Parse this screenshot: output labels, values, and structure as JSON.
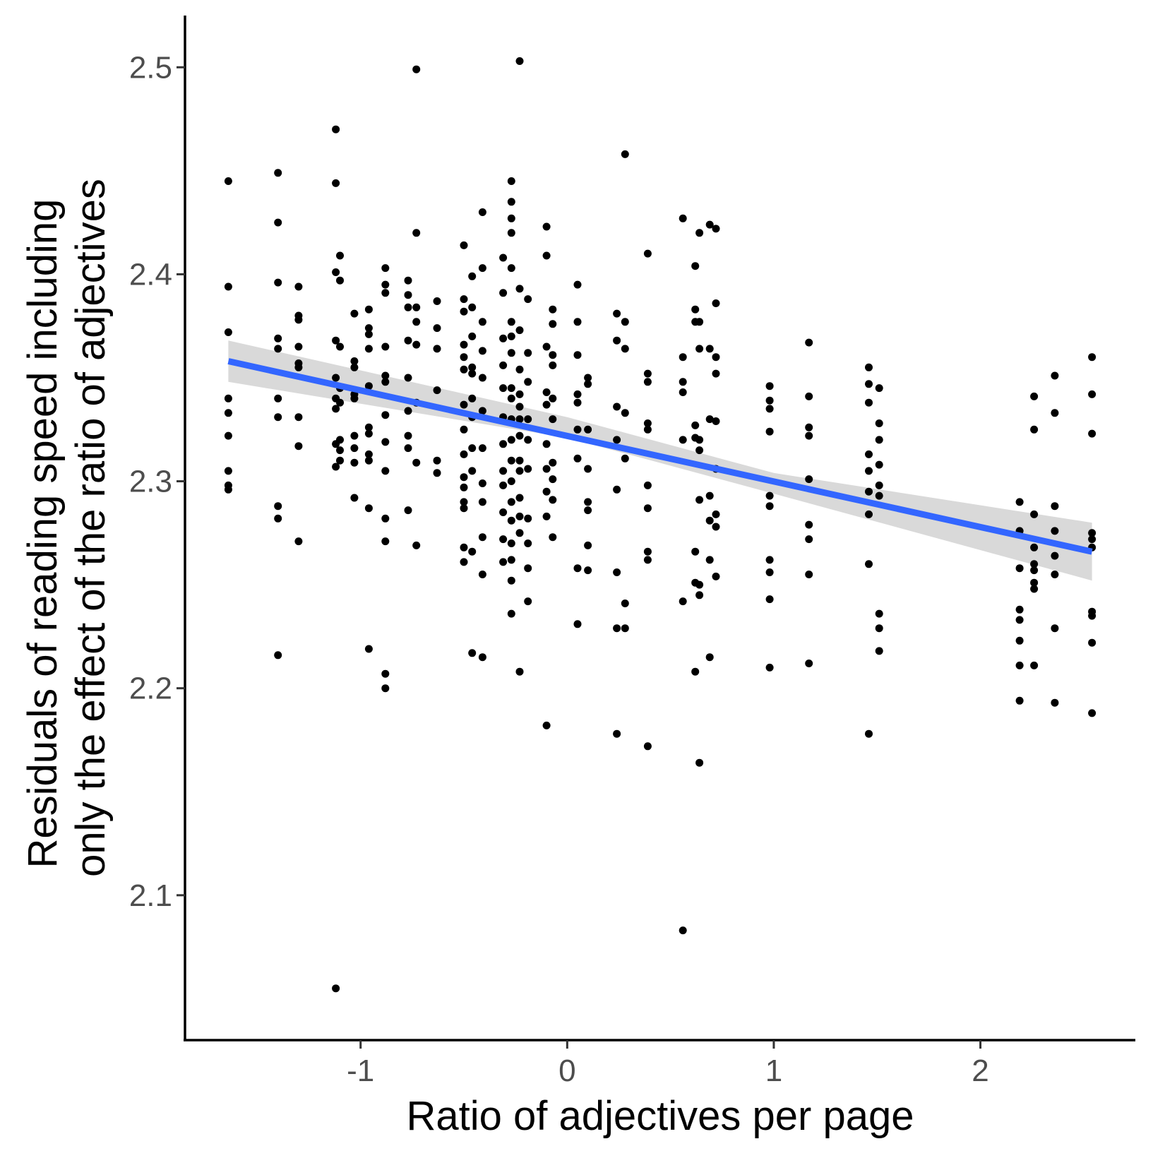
{
  "chart_data": {
    "type": "scatter",
    "xlabel": "Ratio of adjectives per page",
    "ylabel_lines": [
      "Residuals of reading speed including",
      "only the effect of the ratio of adjectives"
    ],
    "xlim": [
      -1.85,
      2.75
    ],
    "ylim": [
      2.03,
      2.525
    ],
    "x_ticks": [
      -1,
      0,
      1,
      2
    ],
    "x_tick_labels": [
      "-1",
      "0",
      "1",
      "2"
    ],
    "y_ticks": [
      2.1,
      2.2,
      2.3,
      2.4,
      2.5
    ],
    "y_tick_labels": [
      "2.1",
      "2.2",
      "2.3",
      "2.4",
      "2.5"
    ],
    "grid": false,
    "legend": "none",
    "colors": {
      "points": "#000000",
      "fit_line": "#3366ff",
      "confidence_band": "#cccccc",
      "axis": "#000000",
      "tick_text": "#4d4d4d"
    },
    "fit_line": {
      "x": [
        -1.64,
        2.54
      ],
      "y": [
        2.358,
        2.266
      ]
    },
    "confidence_band": {
      "x": [
        -1.64,
        0.0,
        1.0,
        2.54
      ],
      "lower": [
        2.348,
        2.321,
        2.294,
        2.252
      ],
      "upper": [
        2.368,
        2.331,
        2.304,
        2.28
      ]
    },
    "points": [
      [
        -1.64,
        2.445
      ],
      [
        -1.64,
        2.394
      ],
      [
        -1.64,
        2.372
      ],
      [
        -1.64,
        2.34
      ],
      [
        -1.64,
        2.333
      ],
      [
        -1.64,
        2.322
      ],
      [
        -1.64,
        2.305
      ],
      [
        -1.64,
        2.298
      ],
      [
        -1.64,
        2.296
      ],
      [
        -1.4,
        2.449
      ],
      [
        -1.4,
        2.425
      ],
      [
        -1.4,
        2.396
      ],
      [
        -1.4,
        2.369
      ],
      [
        -1.4,
        2.364
      ],
      [
        -1.4,
        2.34
      ],
      [
        -1.4,
        2.331
      ],
      [
        -1.4,
        2.288
      ],
      [
        -1.4,
        2.282
      ],
      [
        -1.4,
        2.216
      ],
      [
        -1.3,
        2.394
      ],
      [
        -1.3,
        2.38
      ],
      [
        -1.3,
        2.378
      ],
      [
        -1.3,
        2.365
      ],
      [
        -1.3,
        2.357
      ],
      [
        -1.3,
        2.355
      ],
      [
        -1.3,
        2.331
      ],
      [
        -1.3,
        2.317
      ],
      [
        -1.3,
        2.271
      ],
      [
        -1.12,
        2.47
      ],
      [
        -1.12,
        2.444
      ],
      [
        -1.12,
        2.401
      ],
      [
        -1.12,
        2.368
      ],
      [
        -1.12,
        2.35
      ],
      [
        -1.12,
        2.34
      ],
      [
        -1.12,
        2.335
      ],
      [
        -1.12,
        2.318
      ],
      [
        -1.12,
        2.307
      ],
      [
        -1.12,
        2.055
      ],
      [
        -1.1,
        2.409
      ],
      [
        -1.1,
        2.397
      ],
      [
        -1.1,
        2.365
      ],
      [
        -1.1,
        2.345
      ],
      [
        -1.1,
        2.338
      ],
      [
        -1.1,
        2.32
      ],
      [
        -1.1,
        2.315
      ],
      [
        -1.1,
        2.31
      ],
      [
        -1.03,
        2.381
      ],
      [
        -1.03,
        2.358
      ],
      [
        -1.03,
        2.355
      ],
      [
        -1.03,
        2.342
      ],
      [
        -1.03,
        2.34
      ],
      [
        -1.03,
        2.322
      ],
      [
        -1.03,
        2.316
      ],
      [
        -1.03,
        2.309
      ],
      [
        -1.03,
        2.292
      ],
      [
        -0.96,
        2.383
      ],
      [
        -0.96,
        2.374
      ],
      [
        -0.96,
        2.371
      ],
      [
        -0.96,
        2.364
      ],
      [
        -0.96,
        2.346
      ],
      [
        -0.96,
        2.326
      ],
      [
        -0.96,
        2.323
      ],
      [
        -0.96,
        2.313
      ],
      [
        -0.96,
        2.31
      ],
      [
        -0.96,
        2.287
      ],
      [
        -0.96,
        2.219
      ],
      [
        -0.88,
        2.403
      ],
      [
        -0.88,
        2.395
      ],
      [
        -0.88,
        2.391
      ],
      [
        -0.88,
        2.365
      ],
      [
        -0.88,
        2.351
      ],
      [
        -0.88,
        2.348
      ],
      [
        -0.88,
        2.332
      ],
      [
        -0.88,
        2.319
      ],
      [
        -0.88,
        2.305
      ],
      [
        -0.88,
        2.282
      ],
      [
        -0.88,
        2.271
      ],
      [
        -0.88,
        2.207
      ],
      [
        -0.88,
        2.2
      ],
      [
        -0.77,
        2.397
      ],
      [
        -0.77,
        2.39
      ],
      [
        -0.77,
        2.384
      ],
      [
        -0.77,
        2.368
      ],
      [
        -0.77,
        2.35
      ],
      [
        -0.77,
        2.334
      ],
      [
        -0.77,
        2.322
      ],
      [
        -0.77,
        2.316
      ],
      [
        -0.77,
        2.286
      ],
      [
        -0.73,
        2.499
      ],
      [
        -0.73,
        2.42
      ],
      [
        -0.73,
        2.384
      ],
      [
        -0.73,
        2.377
      ],
      [
        -0.73,
        2.366
      ],
      [
        -0.73,
        2.338
      ],
      [
        -0.73,
        2.309
      ],
      [
        -0.73,
        2.269
      ],
      [
        -0.63,
        2.387
      ],
      [
        -0.63,
        2.374
      ],
      [
        -0.63,
        2.364
      ],
      [
        -0.63,
        2.344
      ],
      [
        -0.63,
        2.31
      ],
      [
        -0.63,
        2.304
      ],
      [
        -0.5,
        2.414
      ],
      [
        -0.5,
        2.388
      ],
      [
        -0.5,
        2.382
      ],
      [
        -0.5,
        2.366
      ],
      [
        -0.5,
        2.36
      ],
      [
        -0.5,
        2.354
      ],
      [
        -0.5,
        2.337
      ],
      [
        -0.5,
        2.325
      ],
      [
        -0.5,
        2.313
      ],
      [
        -0.5,
        2.302
      ],
      [
        -0.5,
        2.297
      ],
      [
        -0.5,
        2.29
      ],
      [
        -0.5,
        2.287
      ],
      [
        -0.5,
        2.268
      ],
      [
        -0.5,
        2.261
      ],
      [
        -0.46,
        2.399
      ],
      [
        -0.46,
        2.384
      ],
      [
        -0.46,
        2.37
      ],
      [
        -0.46,
        2.355
      ],
      [
        -0.46,
        2.352
      ],
      [
        -0.46,
        2.34
      ],
      [
        -0.46,
        2.331
      ],
      [
        -0.46,
        2.316
      ],
      [
        -0.46,
        2.305
      ],
      [
        -0.46,
        2.266
      ],
      [
        -0.46,
        2.217
      ],
      [
        -0.41,
        2.43
      ],
      [
        -0.41,
        2.403
      ],
      [
        -0.41,
        2.377
      ],
      [
        -0.41,
        2.363
      ],
      [
        -0.41,
        2.35
      ],
      [
        -0.41,
        2.334
      ],
      [
        -0.41,
        2.316
      ],
      [
        -0.41,
        2.299
      ],
      [
        -0.41,
        2.29
      ],
      [
        -0.41,
        2.273
      ],
      [
        -0.41,
        2.255
      ],
      [
        -0.41,
        2.215
      ],
      [
        -0.31,
        2.408
      ],
      [
        -0.31,
        2.391
      ],
      [
        -0.31,
        2.369
      ],
      [
        -0.31,
        2.356
      ],
      [
        -0.31,
        2.345
      ],
      [
        -0.31,
        2.331
      ],
      [
        -0.31,
        2.318
      ],
      [
        -0.31,
        2.305
      ],
      [
        -0.31,
        2.298
      ],
      [
        -0.31,
        2.285
      ],
      [
        -0.31,
        2.272
      ],
      [
        -0.31,
        2.261
      ],
      [
        -0.27,
        2.445
      ],
      [
        -0.27,
        2.435
      ],
      [
        -0.27,
        2.427
      ],
      [
        -0.27,
        2.42
      ],
      [
        -0.27,
        2.403
      ],
      [
        -0.27,
        2.377
      ],
      [
        -0.27,
        2.37
      ],
      [
        -0.27,
        2.362
      ],
      [
        -0.27,
        2.345
      ],
      [
        -0.27,
        2.34
      ],
      [
        -0.27,
        2.33
      ],
      [
        -0.27,
        2.32
      ],
      [
        -0.27,
        2.31
      ],
      [
        -0.27,
        2.3
      ],
      [
        -0.27,
        2.29
      ],
      [
        -0.27,
        2.281
      ],
      [
        -0.27,
        2.27
      ],
      [
        -0.27,
        2.262
      ],
      [
        -0.27,
        2.252
      ],
      [
        -0.27,
        2.236
      ],
      [
        -0.23,
        2.503
      ],
      [
        -0.23,
        2.393
      ],
      [
        -0.23,
        2.373
      ],
      [
        -0.23,
        2.354
      ],
      [
        -0.23,
        2.342
      ],
      [
        -0.23,
        2.336
      ],
      [
        -0.23,
        2.33
      ],
      [
        -0.23,
        2.322
      ],
      [
        -0.23,
        2.31
      ],
      [
        -0.23,
        2.305
      ],
      [
        -0.23,
        2.292
      ],
      [
        -0.23,
        2.283
      ],
      [
        -0.23,
        2.275
      ],
      [
        -0.23,
        2.208
      ],
      [
        -0.19,
        2.388
      ],
      [
        -0.19,
        2.362
      ],
      [
        -0.19,
        2.348
      ],
      [
        -0.19,
        2.33
      ],
      [
        -0.19,
        2.32
      ],
      [
        -0.19,
        2.306
      ],
      [
        -0.19,
        2.282
      ],
      [
        -0.19,
        2.27
      ],
      [
        -0.19,
        2.258
      ],
      [
        -0.19,
        2.242
      ],
      [
        -0.1,
        2.423
      ],
      [
        -0.1,
        2.409
      ],
      [
        -0.1,
        2.365
      ],
      [
        -0.1,
        2.343
      ],
      [
        -0.1,
        2.337
      ],
      [
        -0.1,
        2.318
      ],
      [
        -0.1,
        2.306
      ],
      [
        -0.1,
        2.295
      ],
      [
        -0.1,
        2.283
      ],
      [
        -0.1,
        2.182
      ],
      [
        -0.07,
        2.383
      ],
      [
        -0.07,
        2.376
      ],
      [
        -0.07,
        2.361
      ],
      [
        -0.07,
        2.356
      ],
      [
        -0.07,
        2.34
      ],
      [
        -0.07,
        2.33
      ],
      [
        -0.07,
        2.309
      ],
      [
        -0.07,
        2.301
      ],
      [
        -0.07,
        2.291
      ],
      [
        -0.07,
        2.273
      ],
      [
        0.05,
        2.395
      ],
      [
        0.05,
        2.377
      ],
      [
        0.05,
        2.361
      ],
      [
        0.05,
        2.342
      ],
      [
        0.05,
        2.338
      ],
      [
        0.05,
        2.325
      ],
      [
        0.05,
        2.311
      ],
      [
        0.05,
        2.258
      ],
      [
        0.05,
        2.231
      ],
      [
        0.1,
        2.35
      ],
      [
        0.1,
        2.347
      ],
      [
        0.1,
        2.325
      ],
      [
        0.1,
        2.306
      ],
      [
        0.1,
        2.29
      ],
      [
        0.1,
        2.286
      ],
      [
        0.1,
        2.269
      ],
      [
        0.1,
        2.257
      ],
      [
        0.24,
        2.381
      ],
      [
        0.24,
        2.368
      ],
      [
        0.24,
        2.336
      ],
      [
        0.24,
        2.32
      ],
      [
        0.24,
        2.296
      ],
      [
        0.24,
        2.256
      ],
      [
        0.24,
        2.229
      ],
      [
        0.24,
        2.178
      ],
      [
        0.28,
        2.458
      ],
      [
        0.28,
        2.377
      ],
      [
        0.28,
        2.364
      ],
      [
        0.28,
        2.333
      ],
      [
        0.28,
        2.311
      ],
      [
        0.28,
        2.241
      ],
      [
        0.28,
        2.229
      ],
      [
        0.39,
        2.41
      ],
      [
        0.39,
        2.352
      ],
      [
        0.39,
        2.348
      ],
      [
        0.39,
        2.328
      ],
      [
        0.39,
        2.325
      ],
      [
        0.39,
        2.298
      ],
      [
        0.39,
        2.287
      ],
      [
        0.39,
        2.266
      ],
      [
        0.39,
        2.262
      ],
      [
        0.39,
        2.172
      ],
      [
        0.56,
        2.427
      ],
      [
        0.56,
        2.36
      ],
      [
        0.56,
        2.348
      ],
      [
        0.56,
        2.343
      ],
      [
        0.56,
        2.32
      ],
      [
        0.56,
        2.242
      ],
      [
        0.56,
        2.083
      ],
      [
        0.62,
        2.404
      ],
      [
        0.62,
        2.383
      ],
      [
        0.62,
        2.377
      ],
      [
        0.62,
        2.327
      ],
      [
        0.62,
        2.321
      ],
      [
        0.62,
        2.266
      ],
      [
        0.62,
        2.251
      ],
      [
        0.62,
        2.208
      ],
      [
        0.64,
        2.42
      ],
      [
        0.64,
        2.377
      ],
      [
        0.64,
        2.364
      ],
      [
        0.64,
        2.32
      ],
      [
        0.64,
        2.315
      ],
      [
        0.64,
        2.291
      ],
      [
        0.64,
        2.25
      ],
      [
        0.64,
        2.245
      ],
      [
        0.64,
        2.164
      ],
      [
        0.69,
        2.424
      ],
      [
        0.69,
        2.364
      ],
      [
        0.69,
        2.33
      ],
      [
        0.69,
        2.293
      ],
      [
        0.69,
        2.281
      ],
      [
        0.69,
        2.262
      ],
      [
        0.69,
        2.215
      ],
      [
        0.72,
        2.422
      ],
      [
        0.72,
        2.386
      ],
      [
        0.72,
        2.36
      ],
      [
        0.72,
        2.352
      ],
      [
        0.72,
        2.329
      ],
      [
        0.72,
        2.306
      ],
      [
        0.72,
        2.284
      ],
      [
        0.72,
        2.278
      ],
      [
        0.72,
        2.254
      ],
      [
        0.98,
        2.346
      ],
      [
        0.98,
        2.339
      ],
      [
        0.98,
        2.335
      ],
      [
        0.98,
        2.324
      ],
      [
        0.98,
        2.293
      ],
      [
        0.98,
        2.288
      ],
      [
        0.98,
        2.262
      ],
      [
        0.98,
        2.256
      ],
      [
        0.98,
        2.243
      ],
      [
        0.98,
        2.21
      ],
      [
        1.17,
        2.367
      ],
      [
        1.17,
        2.341
      ],
      [
        1.17,
        2.326
      ],
      [
        1.17,
        2.322
      ],
      [
        1.17,
        2.301
      ],
      [
        1.17,
        2.279
      ],
      [
        1.17,
        2.272
      ],
      [
        1.17,
        2.255
      ],
      [
        1.17,
        2.212
      ],
      [
        1.46,
        2.355
      ],
      [
        1.46,
        2.347
      ],
      [
        1.46,
        2.338
      ],
      [
        1.46,
        2.313
      ],
      [
        1.46,
        2.305
      ],
      [
        1.46,
        2.295
      ],
      [
        1.46,
        2.284
      ],
      [
        1.46,
        2.26
      ],
      [
        1.46,
        2.178
      ],
      [
        1.51,
        2.345
      ],
      [
        1.51,
        2.328
      ],
      [
        1.51,
        2.32
      ],
      [
        1.51,
        2.308
      ],
      [
        1.51,
        2.298
      ],
      [
        1.51,
        2.293
      ],
      [
        1.51,
        2.236
      ],
      [
        1.51,
        2.229
      ],
      [
        1.51,
        2.218
      ],
      [
        2.19,
        2.29
      ],
      [
        2.19,
        2.276
      ],
      [
        2.19,
        2.258
      ],
      [
        2.19,
        2.238
      ],
      [
        2.19,
        2.233
      ],
      [
        2.19,
        2.223
      ],
      [
        2.19,
        2.211
      ],
      [
        2.19,
        2.194
      ],
      [
        2.26,
        2.341
      ],
      [
        2.26,
        2.325
      ],
      [
        2.26,
        2.284
      ],
      [
        2.26,
        2.268
      ],
      [
        2.26,
        2.26
      ],
      [
        2.26,
        2.257
      ],
      [
        2.26,
        2.251
      ],
      [
        2.26,
        2.248
      ],
      [
        2.26,
        2.211
      ],
      [
        2.36,
        2.351
      ],
      [
        2.36,
        2.333
      ],
      [
        2.36,
        2.288
      ],
      [
        2.36,
        2.276
      ],
      [
        2.36,
        2.264
      ],
      [
        2.36,
        2.255
      ],
      [
        2.36,
        2.229
      ],
      [
        2.36,
        2.193
      ],
      [
        2.54,
        2.36
      ],
      [
        2.54,
        2.342
      ],
      [
        2.54,
        2.323
      ],
      [
        2.54,
        2.275
      ],
      [
        2.54,
        2.272
      ],
      [
        2.54,
        2.268
      ],
      [
        2.54,
        2.237
      ],
      [
        2.54,
        2.235
      ],
      [
        2.54,
        2.222
      ],
      [
        2.54,
        2.188
      ]
    ]
  }
}
